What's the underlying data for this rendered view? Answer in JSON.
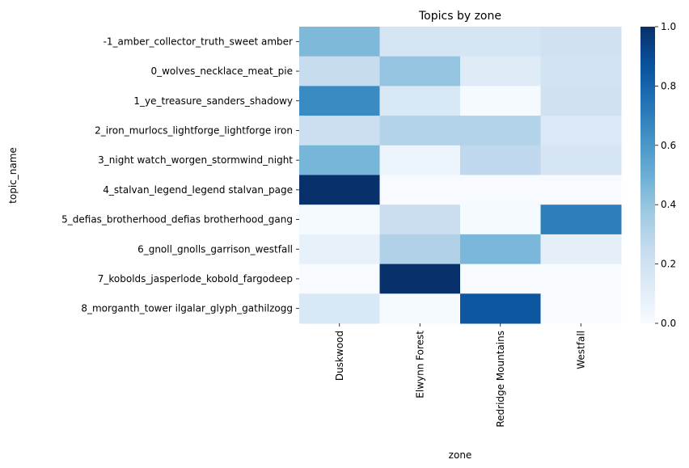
{
  "chart_data": {
    "type": "heatmap",
    "title": "Topics by zone",
    "xlabel": "zone",
    "ylabel": "topic_name",
    "columns": [
      "Duskwood",
      "Elwynn Forest",
      "Redridge Mountains",
      "Westfall"
    ],
    "rows": [
      "-1_amber_collector_truth_sweet amber",
      "0_wolves_necklace_meat_pie",
      "1_ye_treasure_sanders_shadowy",
      "2_iron_murlocs_lightforge_lightforge iron",
      "3_night watch_worgen_stormwind_night",
      "4_stalvan_legend_legend stalvan_page",
      "5_defias_brotherhood_defias brotherhood_gang",
      "6_gnoll_gnolls_garrison_westfall",
      "7_kobolds_jasperlode_kobold_fargodeep",
      "8_morganth_tower ilgalar_glyph_gathilzogg"
    ],
    "values": [
      [
        0.45,
        0.17,
        0.17,
        0.2
      ],
      [
        0.24,
        0.4,
        0.12,
        0.19
      ],
      [
        0.65,
        0.15,
        0.01,
        0.2
      ],
      [
        0.22,
        0.31,
        0.31,
        0.14
      ],
      [
        0.47,
        0.05,
        0.27,
        0.17
      ],
      [
        1.0,
        0.0,
        0.0,
        0.0
      ],
      [
        0.01,
        0.23,
        0.01,
        0.7
      ],
      [
        0.08,
        0.32,
        0.46,
        0.09
      ],
      [
        0.0,
        1.0,
        0.0,
        0.0
      ],
      [
        0.15,
        0.01,
        0.85,
        0.0
      ]
    ],
    "colorbar": {
      "colormap": "Blues",
      "range": [
        0.0,
        1.0
      ],
      "ticks": [
        "0.0",
        "0.2",
        "0.4",
        "0.6",
        "0.8",
        "1.0"
      ]
    }
  }
}
